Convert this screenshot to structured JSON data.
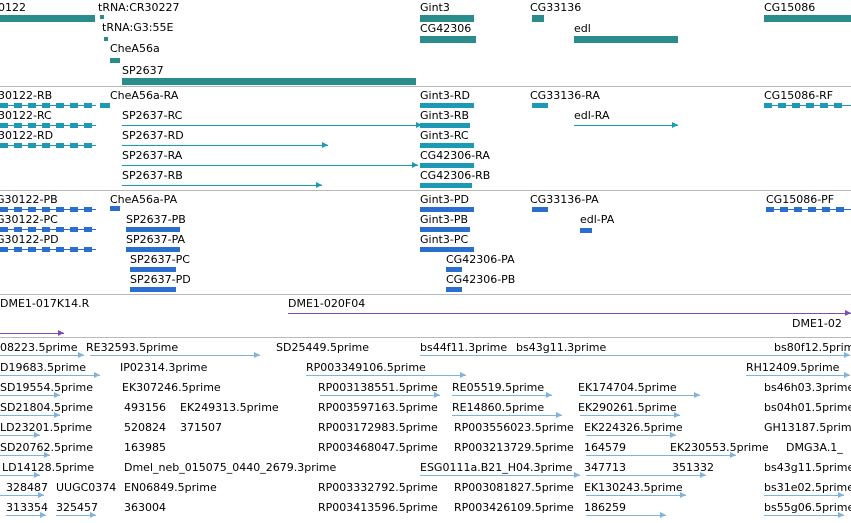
{
  "colors": {
    "track1": "#2a8c8c",
    "track2": "#1b99b5",
    "track3": "#2a6fce",
    "track4": "#7b4fb0",
    "track5": "#7fb4dc",
    "separator": "#b9b9b9"
  },
  "tracks": {
    "genes": [
      {
        "label": "0122"
      },
      {
        "label": "tRNA:CR30227"
      },
      {
        "label": "tRNA:G3:55E"
      },
      {
        "label": "CheA56a"
      },
      {
        "label": "SP2637"
      },
      {
        "label": "Gint3"
      },
      {
        "label": "CG42306"
      },
      {
        "label": "CG33136"
      },
      {
        "label": "edl"
      },
      {
        "label": "CG15086"
      }
    ],
    "transcripts": [
      {
        "label": "30122-RB"
      },
      {
        "label": "30122-RC"
      },
      {
        "label": "30122-RD"
      },
      {
        "label": "CheA56a-RA"
      },
      {
        "label": "SP2637-RC"
      },
      {
        "label": "SP2637-RD"
      },
      {
        "label": "SP2637-RA"
      },
      {
        "label": "SP2637-RB"
      },
      {
        "label": "Gint3-RD"
      },
      {
        "label": "Gint3-RB"
      },
      {
        "label": "Gint3-RC"
      },
      {
        "label": "CG42306-RA"
      },
      {
        "label": "CG42306-RB"
      },
      {
        "label": "CG33136-RA"
      },
      {
        "label": "edl-RA"
      },
      {
        "label": "CG15086-RF"
      }
    ],
    "proteins": [
      {
        "label": "G30122-PB"
      },
      {
        "label": "G30122-PC"
      },
      {
        "label": "G30122-PD"
      },
      {
        "label": "CheA56a-PA"
      },
      {
        "label": "SP2637-PB"
      },
      {
        "label": "SP2637-PA"
      },
      {
        "label": "SP2637-PC"
      },
      {
        "label": "SP2637-PD"
      },
      {
        "label": "Gint3-PD"
      },
      {
        "label": "Gint3-PB"
      },
      {
        "label": "Gint3-PC"
      },
      {
        "label": "CG42306-PA"
      },
      {
        "label": "CG42306-PB"
      },
      {
        "label": "CG33136-PA"
      },
      {
        "label": "edl-PA"
      },
      {
        "label": "CG15086-PF"
      }
    ],
    "clones": [
      {
        "label": "DME1-017K14.R"
      },
      {
        "label": "DME1-020F04"
      },
      {
        "label": "DME1-02"
      }
    ],
    "ests": [
      {
        "label": "08223.5prime"
      },
      {
        "label": "RE32593.5prime"
      },
      {
        "label": "SD25449.5prime"
      },
      {
        "label": "bs44f11.3prime"
      },
      {
        "label": "bs43g11.3prime"
      },
      {
        "label": "bs80f12.5prime"
      },
      {
        "label": "D19683.5prime"
      },
      {
        "label": "IP02314.3prime"
      },
      {
        "label": "RP003349106.5prime"
      },
      {
        "label": "RH12409.5prime"
      },
      {
        "label": "SD19554.5prime"
      },
      {
        "label": "EK307246.5prime"
      },
      {
        "label": "RP003138551.5prime"
      },
      {
        "label": "RE05519.5prime"
      },
      {
        "label": "EK174704.5prime"
      },
      {
        "label": "bs46h03.3prime"
      },
      {
        "label": "SD21804.5prime"
      },
      {
        "label": "493156"
      },
      {
        "label": "EK249313.5prime"
      },
      {
        "label": "RP003597163.5prime"
      },
      {
        "label": "RE14860.5prime"
      },
      {
        "label": "EK290261.5prime"
      },
      {
        "label": "bs04h01.5prime"
      },
      {
        "label": "LD23201.5prime"
      },
      {
        "label": "520824"
      },
      {
        "label": "371507"
      },
      {
        "label": "RP003172983.5prime"
      },
      {
        "label": "RP003556023.5prime"
      },
      {
        "label": "EK224326.5prime"
      },
      {
        "label": "GH13187.5prime"
      },
      {
        "label": "SD20762.5prime"
      },
      {
        "label": "163985"
      },
      {
        "label": "RP003468047.5prime"
      },
      {
        "label": "RP003213729.5prime"
      },
      {
        "label": "164579"
      },
      {
        "label": "EK230553.5prime"
      },
      {
        "label": "DMG3A.1_"
      },
      {
        "label": "LD14128.5prime"
      },
      {
        "label": "Dmel_neb_015075_0440_2679.3prime"
      },
      {
        "label": "ESG0111a.B21_H04.3prime"
      },
      {
        "label": "347713"
      },
      {
        "label": "351332"
      },
      {
        "label": "bs43g11.5prime"
      },
      {
        "label": "328487"
      },
      {
        "label": "UUGC0374"
      },
      {
        "label": "EN06849.5prime"
      },
      {
        "label": "RP003332792.5prime"
      },
      {
        "label": "RP003081827.5prime"
      },
      {
        "label": "EK130243.5prime"
      },
      {
        "label": "bs31e02.5prime"
      },
      {
        "label": "313354"
      },
      {
        "label": "325457"
      },
      {
        "label": "363004"
      },
      {
        "label": "RP003413596.5prime"
      },
      {
        "label": "RP003426109.5prime"
      },
      {
        "label": "186259"
      },
      {
        "label": "bs55g06.5prime"
      }
    ]
  }
}
